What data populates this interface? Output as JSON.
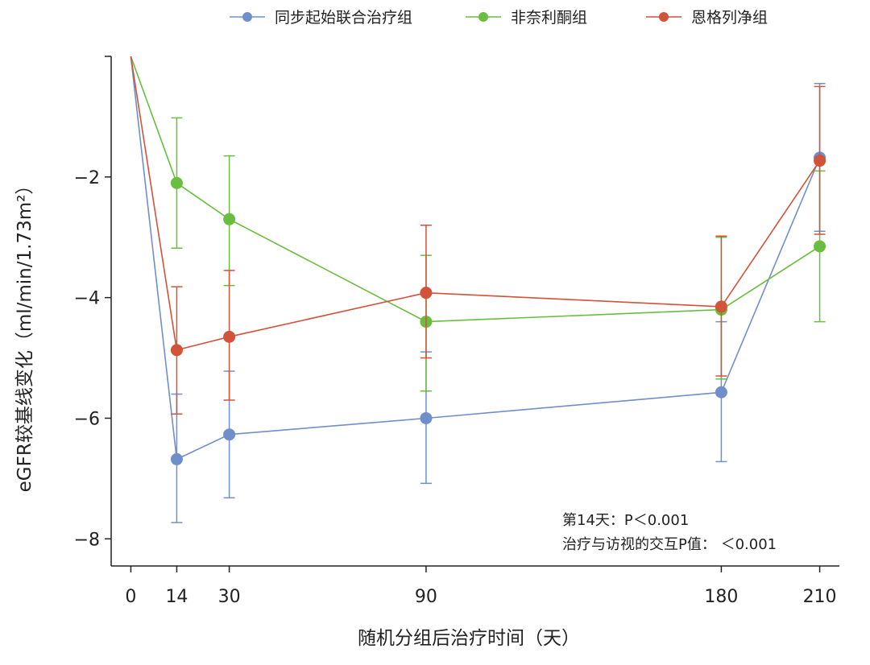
{
  "chart_data": {
    "type": "line",
    "xlabel": "随机分组后治疗时间（天）",
    "ylabel": "eGFR较基线变化（ml/min/1.73m²）",
    "xticks": [
      0,
      14,
      30,
      90,
      180,
      210
    ],
    "yticks": [
      -2,
      -4,
      -6,
      -8
    ],
    "xlim": [
      -6,
      216
    ],
    "ylim": [
      -8.45,
      0
    ],
    "x": [
      0,
      14,
      30,
      90,
      180,
      210
    ],
    "series": [
      {
        "name": "同步起始联合治疗组",
        "color": "#6f8fcb",
        "values": [
          0,
          -6.68,
          -6.27,
          -6.0,
          -5.57,
          -1.68
        ],
        "err_low": [
          null,
          -7.73,
          -7.32,
          -7.08,
          -6.72,
          -2.9
        ],
        "err_high": [
          null,
          -5.6,
          -5.22,
          -4.9,
          -4.4,
          -0.45
        ]
      },
      {
        "name": "非奈利酮组",
        "color": "#6abe3f",
        "values": [
          0,
          -2.1,
          -2.7,
          -4.4,
          -4.2,
          -3.15
        ],
        "err_low": [
          null,
          -3.18,
          -3.8,
          -5.55,
          -5.35,
          -4.4
        ],
        "err_high": [
          null,
          -1.02,
          -1.65,
          -3.3,
          -3.0,
          -1.9
        ]
      },
      {
        "name": "恩格列净组",
        "color": "#d0533a",
        "values": [
          0,
          -4.87,
          -4.65,
          -3.92,
          -4.15,
          -1.73
        ],
        "err_low": [
          null,
          -5.93,
          -5.7,
          -5.0,
          -5.3,
          -2.95
        ],
        "err_high": [
          null,
          -3.82,
          -3.55,
          -2.8,
          -2.98,
          -0.5
        ]
      }
    ],
    "annotations": [
      "第14天：P＜0.001",
      "治疗与访视的交互P值： ＜0.001"
    ],
    "legend_position": "top-center",
    "grid": false
  }
}
